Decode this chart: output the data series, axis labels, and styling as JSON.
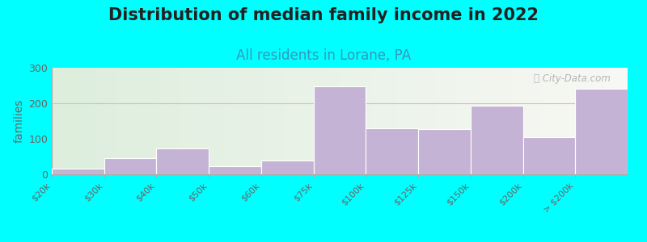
{
  "title": "Distribution of median family income in 2022",
  "subtitle": "All residents in Lorane, PA",
  "ylabel": "families",
  "background_color": "#00ffff",
  "plot_bg_gradient_left": "#ddeedd",
  "plot_bg_gradient_right": "#f8f8f4",
  "bar_color": "#c5b3d5",
  "bar_edge_color": "#c5b3d5",
  "categories": [
    "$20k",
    "$30k",
    "$40k",
    "$50k",
    "$60k",
    "$75k",
    "$100k",
    "$125k",
    "$150k",
    "$200k",
    "> $200k"
  ],
  "values": [
    15,
    45,
    72,
    22,
    38,
    248,
    130,
    128,
    193,
    104,
    240
  ],
  "ylim": [
    0,
    300
  ],
  "yticks": [
    0,
    100,
    200,
    300
  ],
  "title_fontsize": 15,
  "subtitle_fontsize": 12,
  "ylabel_fontsize": 10,
  "watermark_text": "ⓘ City-Data.com"
}
